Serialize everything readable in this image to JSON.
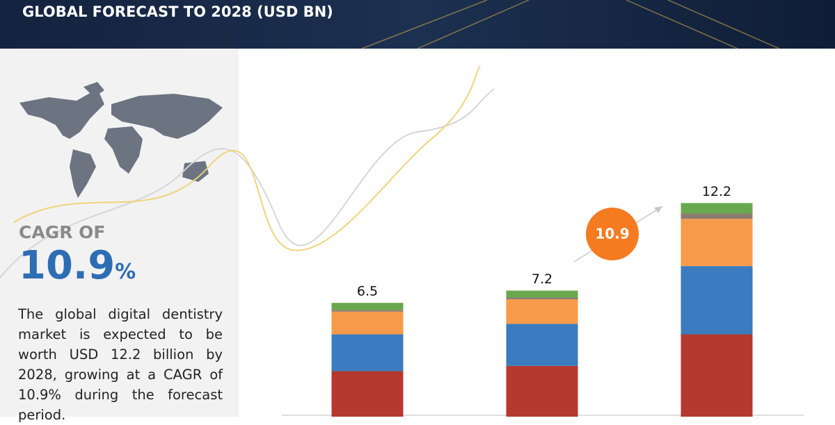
{
  "title": "GLOBAL FORECAST TO 2028 (USD BN)",
  "cagr_label": "CAGR OF",
  "cagr": 10.9,
  "cagr_unit": "%",
  "description": "The global digital dentistry market is expected to be worth USD 12.2 billion by 2028, growing at a CAGR of 10.9% during the forecast period.",
  "chart_data": {
    "type": "stacked-bar",
    "categories": [
      null,
      null,
      null
    ],
    "series": [
      {
        "color": "#b5392f",
        "values": [
          2.6,
          2.9,
          4.7
        ]
      },
      {
        "color": "#3b7bbf",
        "values": [
          2.1,
          2.4,
          3.9
        ]
      },
      {
        "color": "#f79a4a",
        "values": [
          1.3,
          1.4,
          2.7
        ]
      },
      {
        "color": "#8c7b70",
        "values": [
          0.1,
          0.1,
          0.3
        ]
      },
      {
        "color": "#6aa84f",
        "values": [
          0.4,
          0.4,
          0.6
        ]
      }
    ],
    "totals": [
      6.5,
      7.2,
      12.2
    ],
    "ylim": [
      0,
      14
    ]
  }
}
